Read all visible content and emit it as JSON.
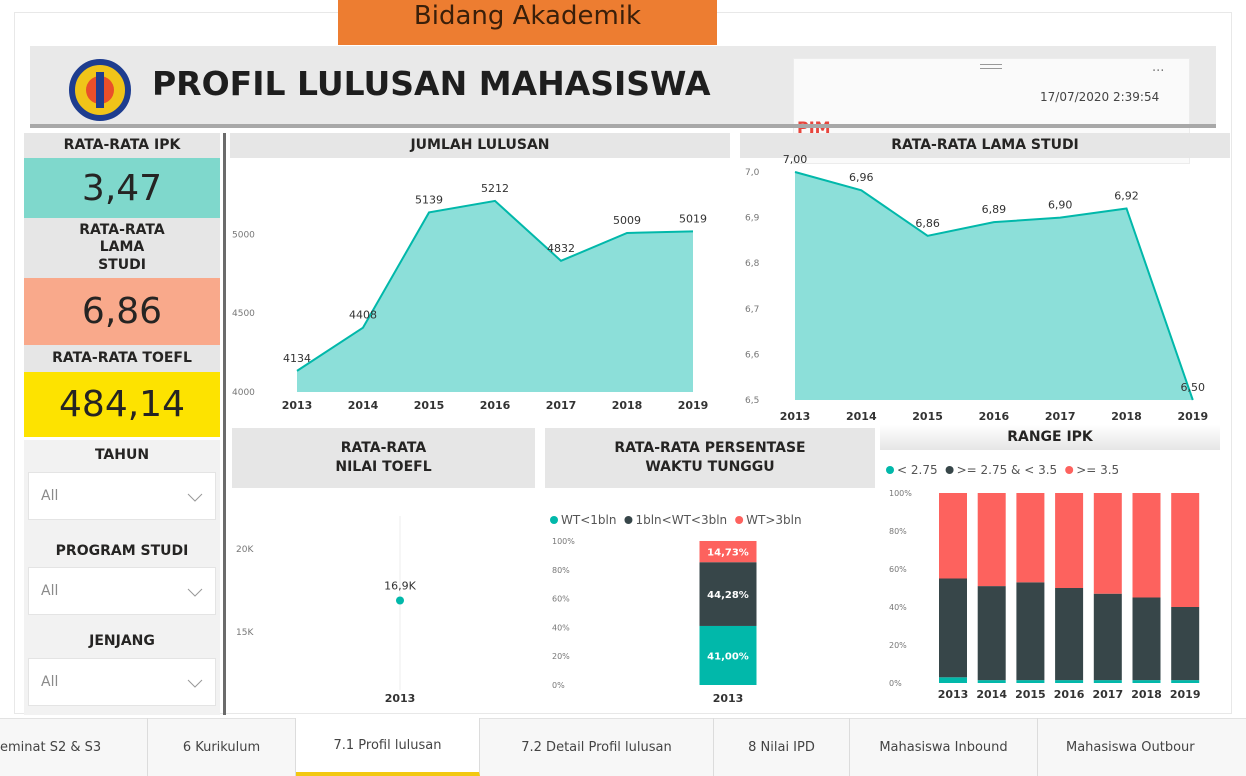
{
  "header": {
    "banner": "Bidang Akademik",
    "title": "PROFIL LULUSAN MAHASISWA",
    "menu": "...",
    "org": "PJM",
    "timestamp": "17/07/2020 2:39:54"
  },
  "kpis": [
    {
      "label": "RATA-RATA IPK",
      "value": "3,47"
    },
    {
      "label": "RATA-RATA LAMA STUDI",
      "value": "6,86"
    },
    {
      "label": "RATA-RATA TOEFL",
      "value": "484,14"
    }
  ],
  "filters": [
    {
      "label": "TAHUN",
      "value": "All"
    },
    {
      "label": "PROGRAM STUDI",
      "value": "All"
    },
    {
      "label": "JENJANG",
      "value": "All"
    }
  ],
  "tabs": [
    "eminat S2 & S3",
    "6 Kurikulum",
    "7.1 Profil lulusan",
    "7.2 Detail Profil lulusan",
    "8 Nilai IPD",
    "Mahasiswa Inbound",
    "Mahasiswa Outbour"
  ],
  "chart_data": [
    {
      "type": "area",
      "title": "JUMLAH LULUSAN",
      "color": "#01b8aa",
      "categories": [
        "2013",
        "2014",
        "2015",
        "2016",
        "2017",
        "2018",
        "2019"
      ],
      "values": [
        4134,
        4408,
        5139,
        5212,
        4832,
        5009,
        5019
      ],
      "ylim": [
        4000,
        5440
      ],
      "yticks": [
        4000,
        4500,
        5000
      ]
    },
    {
      "type": "area",
      "title": "RATA-RATA LAMA STUDI",
      "color": "#01b8aa",
      "categories": [
        "2013",
        "2014",
        "2015",
        "2016",
        "2017",
        "2018",
        "2019"
      ],
      "values": [
        7.0,
        6.96,
        6.86,
        6.89,
        6.9,
        6.92,
        6.5
      ],
      "value_labels": [
        "7,00",
        "6,96",
        "6,86",
        "6,89",
        "6,90",
        "6,92",
        "6,50"
      ],
      "ylim": [
        6.5,
        7.0
      ],
      "yticks": [
        {
          "value": 6.5,
          "label": "6,5"
        },
        {
          "value": 6.6,
          "label": "6,6"
        },
        {
          "value": 6.7,
          "label": "6,7"
        },
        {
          "value": 6.8,
          "label": "6,8"
        },
        {
          "value": 6.9,
          "label": "6,9"
        },
        {
          "value": 7.0,
          "label": "7,0"
        }
      ]
    },
    {
      "type": "line",
      "title": "RATA-RATA NILAI TOEFL",
      "color": "#01b8aa",
      "categories": [
        "2013"
      ],
      "values": [
        16900
      ],
      "value_labels": [
        "16,9K"
      ],
      "ylim": [
        11500,
        22000
      ],
      "yticks": [
        {
          "value": 15000,
          "label": "15K"
        },
        {
          "value": 20000,
          "label": "20K"
        }
      ]
    },
    {
      "type": "stacked_bar",
      "title": "RATA-RATA PERSENTASE WAKTU TUNGGU",
      "categories": [
        "2013"
      ],
      "series": [
        {
          "name": "WT<1bln",
          "color": "#01b8aa",
          "values": [
            41.0
          ],
          "value_labels": [
            "41,00%"
          ]
        },
        {
          "name": "1bln<WT<3bln",
          "color": "#374649",
          "values": [
            44.28
          ],
          "value_labels": [
            "44,28%"
          ]
        },
        {
          "name": "WT>3bln",
          "color": "#fd625e",
          "values": [
            14.73
          ],
          "value_labels": [
            "14,73%"
          ]
        }
      ],
      "ylim": [
        0,
        100
      ],
      "yticks": [
        {
          "value": 0,
          "label": "0%"
        },
        {
          "value": 20,
          "label": "20%"
        },
        {
          "value": 40,
          "label": "40%"
        },
        {
          "value": 60,
          "label": "60%"
        },
        {
          "value": 80,
          "label": "80%"
        },
        {
          "value": 100,
          "label": "100%"
        }
      ]
    },
    {
      "type": "stacked_bar",
      "title": "RANGE IPK",
      "categories": [
        "2013",
        "2014",
        "2015",
        "2016",
        "2017",
        "2018",
        "2019"
      ],
      "series": [
        {
          "name": "< 2.75",
          "color": "#01b8aa",
          "values": [
            3,
            1.5,
            1.5,
            1.5,
            1.5,
            1.5,
            1.5
          ]
        },
        {
          "name": ">= 2.75 & < 3.5",
          "color": "#374649",
          "values": [
            52,
            49.5,
            51.5,
            48.5,
            45.5,
            43.5,
            38.5
          ]
        },
        {
          "name": ">= 3.5",
          "color": "#fd625e",
          "values": [
            45,
            49,
            47,
            50,
            53,
            55,
            60
          ]
        }
      ],
      "ylim": [
        0,
        100
      ],
      "yticks": [
        {
          "value": 0,
          "label": "0%"
        },
        {
          "value": 20,
          "label": "20%"
        },
        {
          "value": 40,
          "label": "40%"
        },
        {
          "value": 60,
          "label": "60%"
        },
        {
          "value": 80,
          "label": "80%"
        },
        {
          "value": 100,
          "label": "100%"
        }
      ]
    }
  ]
}
